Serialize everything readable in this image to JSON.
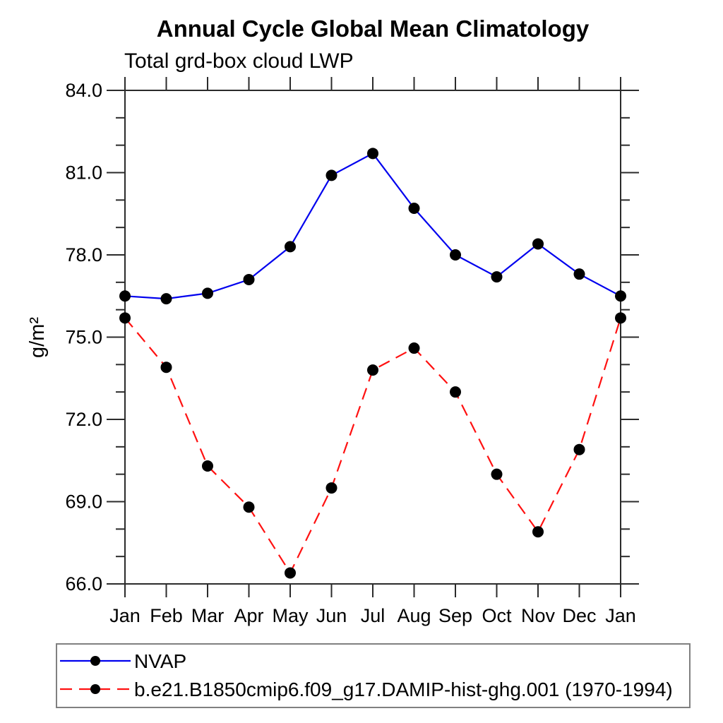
{
  "chart": {
    "title": "Annual Cycle Global Mean Climatology",
    "subtitle": "Total grd-box cloud LWP",
    "ylabel": "g/m²"
  },
  "chart_data": {
    "type": "line",
    "title": "Annual Cycle Global Mean Climatology",
    "subtitle": "Total grd-box cloud LWP",
    "xlabel": "",
    "ylabel": "g/m²",
    "x_categories": [
      "Jan",
      "Feb",
      "Mar",
      "Apr",
      "May",
      "Jun",
      "Jul",
      "Aug",
      "Sep",
      "Oct",
      "Nov",
      "Dec",
      "Jan"
    ],
    "ylim": [
      66.0,
      84.0
    ],
    "ytick_major": [
      66.0,
      69.0,
      72.0,
      75.0,
      78.0,
      81.0,
      84.0
    ],
    "ytick_labels": [
      "66.0",
      "69.0",
      "72.0",
      "75.0",
      "78.0",
      "81.0",
      "84.0"
    ],
    "ytick_minor_step": 1.0,
    "grid": false,
    "axis_color": "#2b2b2b",
    "legend_position": "bottom-left-box",
    "legend_border_color": "#808080",
    "marker": "filled-circle",
    "marker_color": "#000000",
    "series": [
      {
        "name": "NVAP",
        "color": "#0000ee",
        "style": "solid",
        "values": [
          76.5,
          76.4,
          76.6,
          77.1,
          78.3,
          80.9,
          81.7,
          79.7,
          78.0,
          77.2,
          78.4,
          77.3,
          76.5
        ]
      },
      {
        "name": "b.e21.B1850cmip6.f09_g17.DAMIP-hist-ghg.001 (1970-1994)",
        "color": "#ff1111",
        "style": "dashed",
        "values": [
          75.7,
          73.9,
          70.3,
          68.8,
          66.4,
          69.5,
          73.8,
          74.6,
          73.0,
          70.0,
          67.9,
          70.9,
          75.7
        ]
      }
    ]
  }
}
